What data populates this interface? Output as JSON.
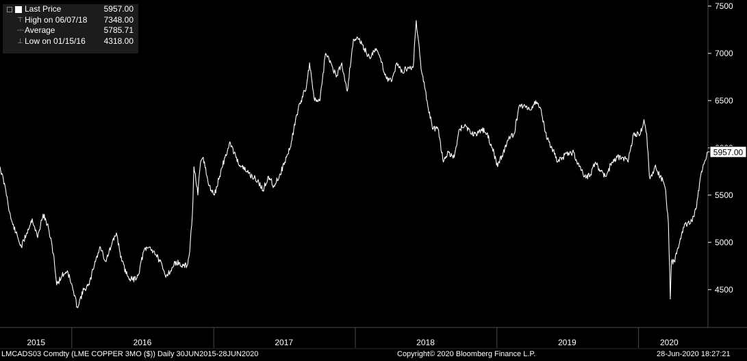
{
  "legend": {
    "items": [
      {
        "label": "Last Price",
        "value": "5957.00",
        "marker": "white-square-swatch"
      },
      {
        "label": "High on 06/07/18",
        "value": "7348.00",
        "marker": "high-marker-icon"
      },
      {
        "label": "Average",
        "value": "5785.71",
        "marker": "average-marker-icon"
      },
      {
        "label": "Low on 01/15/16",
        "value": "4318.00",
        "marker": "low-marker-icon"
      }
    ]
  },
  "footer": {
    "ticker": "LMCADS03 Comdty (LME COPPER   3MO ($))  Daily 30JUN2015-28JUN2020",
    "copyright": "Copyright© 2020 Bloomberg Finance L.P.",
    "timestamp": "28-Jun-2020  18:27:21"
  },
  "colors": {
    "background": "#000000",
    "line": "#ffffff",
    "tick_text": "#ffffff",
    "divider": "#4a4a4a"
  },
  "chart_data": {
    "type": "line",
    "x_range": [
      "2015-06-30",
      "2020-06-28"
    ],
    "ylim": [
      4100,
      7550
    ],
    "y_axis_position": "right",
    "y_ticks": [
      4500,
      5000,
      5500,
      6000,
      6500,
      7000,
      7500
    ],
    "y_tick_labels": [
      "4500",
      "5000",
      "5500",
      "6000",
      "6500",
      "7000",
      "7500"
    ],
    "x_year_labels": [
      {
        "label": "2015",
        "date": "2015-10-01"
      },
      {
        "label": "2016",
        "date": "2016-07-01"
      },
      {
        "label": "2017",
        "date": "2017-07-01"
      },
      {
        "label": "2018",
        "date": "2018-07-01"
      },
      {
        "label": "2019",
        "date": "2019-07-01"
      },
      {
        "label": "2020",
        "date": "2020-03-20"
      }
    ],
    "year_boundaries": [
      "2016-01-01",
      "2017-01-01",
      "2018-01-01",
      "2019-01-01",
      "2020-01-01"
    ],
    "last_price_label": "5957.00",
    "series": [
      {
        "name": "Last Price",
        "points": [
          [
            "2015-06-30",
            5800
          ],
          [
            "2015-07-15",
            5550
          ],
          [
            "2015-07-28",
            5250
          ],
          [
            "2015-08-10",
            5100
          ],
          [
            "2015-08-24",
            4950
          ],
          [
            "2015-09-07",
            5100
          ],
          [
            "2015-09-21",
            5250
          ],
          [
            "2015-10-05",
            5050
          ],
          [
            "2015-10-19",
            5300
          ],
          [
            "2015-11-02",
            5150
          ],
          [
            "2015-11-16",
            4850
          ],
          [
            "2015-11-23",
            4550
          ],
          [
            "2015-12-07",
            4650
          ],
          [
            "2015-12-21",
            4700
          ],
          [
            "2016-01-04",
            4500
          ],
          [
            "2016-01-15",
            4318
          ],
          [
            "2016-02-01",
            4500
          ],
          [
            "2016-02-15",
            4550
          ],
          [
            "2016-03-01",
            4800
          ],
          [
            "2016-03-15",
            4950
          ],
          [
            "2016-03-28",
            4800
          ],
          [
            "2016-04-11",
            4950
          ],
          [
            "2016-04-25",
            5100
          ],
          [
            "2016-05-09",
            4800
          ],
          [
            "2016-05-23",
            4650
          ],
          [
            "2016-06-06",
            4600
          ],
          [
            "2016-06-20",
            4650
          ],
          [
            "2016-07-04",
            4900
          ],
          [
            "2016-07-18",
            4950
          ],
          [
            "2016-08-01",
            4900
          ],
          [
            "2016-08-15",
            4800
          ],
          [
            "2016-08-29",
            4650
          ],
          [
            "2016-09-12",
            4700
          ],
          [
            "2016-09-26",
            4800
          ],
          [
            "2016-10-10",
            4750
          ],
          [
            "2016-10-24",
            4750
          ],
          [
            "2016-10-31",
            4900
          ],
          [
            "2016-11-07",
            5300
          ],
          [
            "2016-11-11",
            5800
          ],
          [
            "2016-11-21",
            5500
          ],
          [
            "2016-11-28",
            5850
          ],
          [
            "2016-12-05",
            5900
          ],
          [
            "2016-12-19",
            5600
          ],
          [
            "2017-01-03",
            5500
          ],
          [
            "2017-01-16",
            5700
          ],
          [
            "2017-01-30",
            5900
          ],
          [
            "2017-02-13",
            6050
          ],
          [
            "2017-02-27",
            5900
          ],
          [
            "2017-03-13",
            5800
          ],
          [
            "2017-03-27",
            5750
          ],
          [
            "2017-04-10",
            5700
          ],
          [
            "2017-04-24",
            5650
          ],
          [
            "2017-05-08",
            5550
          ],
          [
            "2017-05-22",
            5700
          ],
          [
            "2017-06-05",
            5600
          ],
          [
            "2017-06-19",
            5700
          ],
          [
            "2017-07-03",
            5850
          ],
          [
            "2017-07-17",
            6000
          ],
          [
            "2017-07-31",
            6300
          ],
          [
            "2017-08-14",
            6500
          ],
          [
            "2017-08-28",
            6650
          ],
          [
            "2017-09-05",
            6900
          ],
          [
            "2017-09-18",
            6500
          ],
          [
            "2017-10-02",
            6500
          ],
          [
            "2017-10-16",
            7000
          ],
          [
            "2017-10-30",
            6900
          ],
          [
            "2017-11-13",
            6750
          ],
          [
            "2017-11-27",
            6900
          ],
          [
            "2017-12-11",
            6600
          ],
          [
            "2017-12-27",
            7150
          ],
          [
            "2018-01-10",
            7150
          ],
          [
            "2018-01-24",
            7050
          ],
          [
            "2018-02-07",
            6950
          ],
          [
            "2018-02-21",
            7050
          ],
          [
            "2018-03-07",
            6950
          ],
          [
            "2018-03-21",
            6750
          ],
          [
            "2018-04-04",
            6700
          ],
          [
            "2018-04-18",
            6900
          ],
          [
            "2018-05-02",
            6800
          ],
          [
            "2018-05-16",
            6850
          ],
          [
            "2018-05-30",
            6850
          ],
          [
            "2018-06-07",
            7348
          ],
          [
            "2018-06-21",
            6800
          ],
          [
            "2018-07-05",
            6500
          ],
          [
            "2018-07-19",
            6200
          ],
          [
            "2018-08-02",
            6200
          ],
          [
            "2018-08-16",
            5850
          ],
          [
            "2018-08-30",
            5950
          ],
          [
            "2018-09-13",
            5900
          ],
          [
            "2018-09-27",
            6200
          ],
          [
            "2018-10-11",
            6250
          ],
          [
            "2018-10-25",
            6150
          ],
          [
            "2018-11-08",
            6150
          ],
          [
            "2018-11-22",
            6200
          ],
          [
            "2018-12-06",
            6150
          ],
          [
            "2018-12-20",
            6000
          ],
          [
            "2019-01-03",
            5800
          ],
          [
            "2019-01-17",
            5950
          ],
          [
            "2019-01-31",
            6100
          ],
          [
            "2019-02-14",
            6150
          ],
          [
            "2019-02-28",
            6450
          ],
          [
            "2019-03-14",
            6450
          ],
          [
            "2019-03-28",
            6400
          ],
          [
            "2019-04-11",
            6500
          ],
          [
            "2019-04-25",
            6400
          ],
          [
            "2019-05-09",
            6100
          ],
          [
            "2019-05-23",
            6000
          ],
          [
            "2019-06-06",
            5850
          ],
          [
            "2019-06-20",
            5900
          ],
          [
            "2019-07-04",
            5950
          ],
          [
            "2019-07-18",
            5950
          ],
          [
            "2019-08-01",
            5800
          ],
          [
            "2019-08-15",
            5700
          ],
          [
            "2019-08-29",
            5700
          ],
          [
            "2019-09-12",
            5850
          ],
          [
            "2019-09-26",
            5750
          ],
          [
            "2019-10-10",
            5700
          ],
          [
            "2019-10-24",
            5850
          ],
          [
            "2019-11-07",
            5900
          ],
          [
            "2019-11-21",
            5900
          ],
          [
            "2019-12-05",
            5850
          ],
          [
            "2019-12-19",
            6150
          ],
          [
            "2020-01-06",
            6150
          ],
          [
            "2020-01-15",
            6300
          ],
          [
            "2020-01-22",
            6150
          ],
          [
            "2020-01-29",
            5700
          ],
          [
            "2020-02-05",
            5700
          ],
          [
            "2020-02-12",
            5800
          ],
          [
            "2020-02-19",
            5750
          ],
          [
            "2020-02-26",
            5700
          ],
          [
            "2020-03-04",
            5650
          ],
          [
            "2020-03-11",
            5550
          ],
          [
            "2020-03-18",
            5200
          ],
          [
            "2020-03-23",
            4400
          ],
          [
            "2020-03-26",
            4800
          ],
          [
            "2020-04-02",
            4800
          ],
          [
            "2020-04-16",
            5000
          ],
          [
            "2020-04-30",
            5200
          ],
          [
            "2020-05-14",
            5200
          ],
          [
            "2020-05-28",
            5350
          ],
          [
            "2020-06-11",
            5750
          ],
          [
            "2020-06-19",
            5850
          ],
          [
            "2020-06-26",
            5957
          ]
        ]
      }
    ]
  }
}
